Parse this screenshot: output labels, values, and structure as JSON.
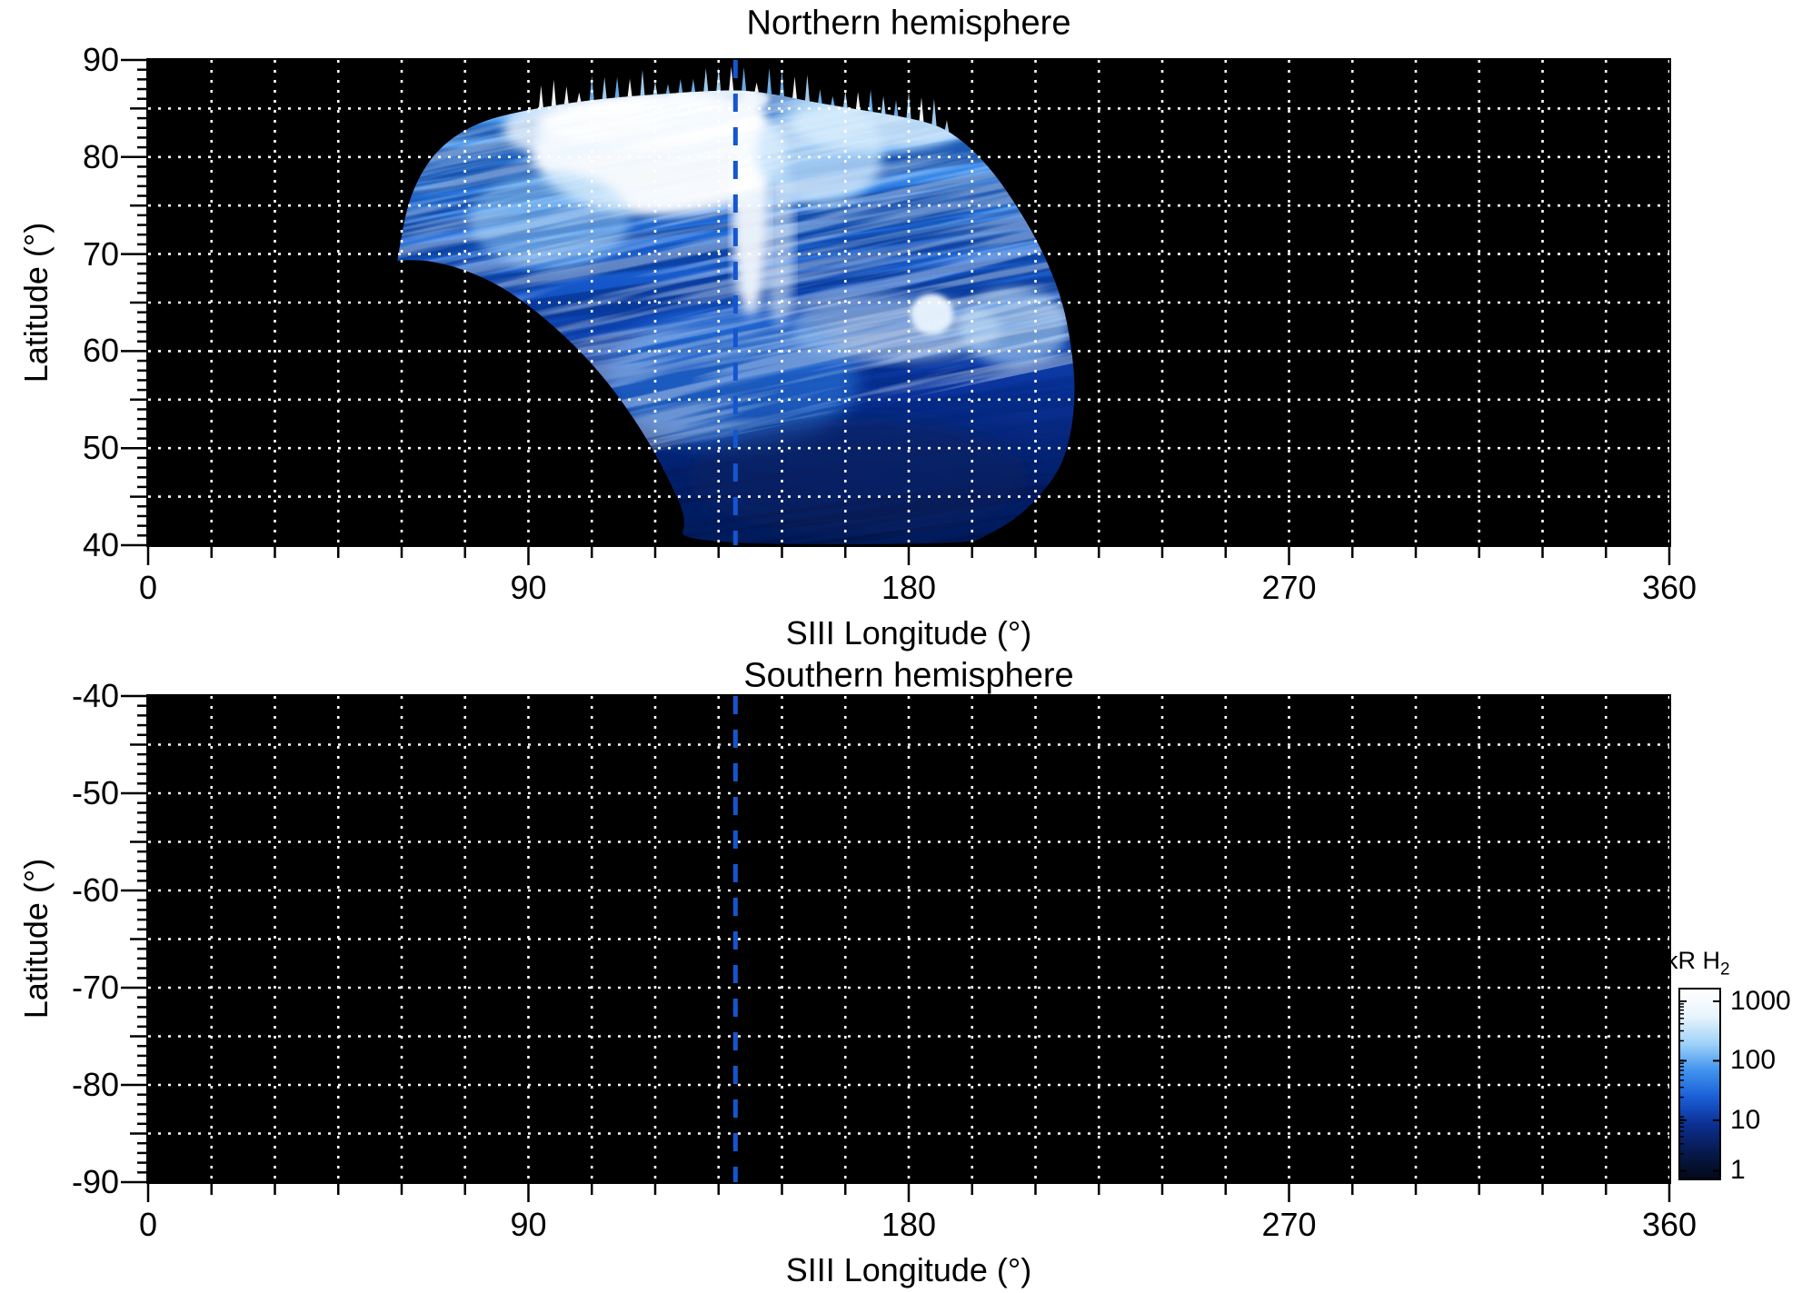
{
  "chart_data": {
    "type": "heatmap",
    "panels": [
      {
        "id": "north",
        "title": "Northern hemisphere",
        "xlabel": "SIII Longitude (°)",
        "ylabel": "Latitude (°)",
        "xlim": [
          0,
          360
        ],
        "ylim": [
          40,
          90
        ],
        "xtick_labels": [
          "0",
          "90",
          "180",
          "270",
          "360"
        ],
        "xtick_values": [
          0,
          90,
          180,
          270,
          360
        ],
        "ytick_labels": [
          "90",
          "80",
          "70",
          "60",
          "50",
          "40"
        ],
        "ytick_values": [
          90,
          80,
          70,
          60,
          50,
          40
        ],
        "x_grid_step_deg": 15,
        "y_grid_step_deg": 5,
        "x_minor_tick_step_deg": 15,
        "y_minor_tick_step_deg": 1,
        "grid_style": "white dotted on black background",
        "reference_line": {
          "lon": 139,
          "style": "dashed",
          "color": "#1456cf"
        },
        "data_coverage": {
          "lon_range": [
            59,
            220
          ],
          "lat_range": [
            40,
            87
          ],
          "description": "Fan-shaped UV auroral emission swath. Brightest (300-1000+ kR) between lat 75-87 and lon 95-165, bright vertical streak near lon 140-146, bright spot near lon 185 / lat 64, light arc near lat 60-65 for lon 150-220; mottled faint 1-30 kR emission below lat 55 narrowing to lon 125-194 at lat 40."
        },
        "aurora": {
          "outline_lonlat": [
            [
              59,
              69.3
            ],
            [
              60.5,
              73.5
            ],
            [
              63,
              77
            ],
            [
              67,
              80
            ],
            [
              72,
              82
            ],
            [
              78,
              83.5
            ],
            [
              85,
              84.4
            ],
            [
              93,
              85.1
            ],
            [
              102,
              85.7
            ],
            [
              112,
              86.2
            ],
            [
              122,
              86.5
            ],
            [
              132,
              86.8
            ],
            [
              141,
              86.9
            ],
            [
              149,
              86.4
            ],
            [
              158,
              85.6
            ],
            [
              168,
              84.9
            ],
            [
              178,
              84.2
            ],
            [
              187,
              83.3
            ],
            [
              193,
              81.6
            ],
            [
              199,
              79
            ],
            [
              204,
              76
            ],
            [
              209,
              72.5
            ],
            [
              213,
              69
            ],
            [
              216.5,
              65
            ],
            [
              218.5,
              60.5
            ],
            [
              219.5,
              56
            ],
            [
              218.5,
              51.5
            ],
            [
              216,
              48
            ],
            [
              211,
              45
            ],
            [
              205,
              42.6
            ],
            [
              198.5,
              41
            ],
            [
              194,
              40.1
            ],
            [
              125.5,
              40.1
            ],
            [
              127.5,
              42.6
            ],
            [
              124,
              46.1
            ],
            [
              119.5,
              49.9
            ],
            [
              114,
              53.7
            ],
            [
              107.5,
              57.5
            ],
            [
              100,
              61
            ],
            [
              92,
              64.1
            ],
            [
              83.5,
              66.7
            ],
            [
              75,
              68.4
            ],
            [
              67,
              69.3
            ],
            [
              61.5,
              69.4
            ]
          ],
          "bright_features": [
            {
              "lon": 121,
              "lat": 80.5,
              "rlon": 30,
              "rlat": 6.5,
              "color": "#ffffff",
              "opacity": 0.97,
              "blur": 8
            },
            {
              "lon": 100,
              "lat": 83,
              "rlon": 16,
              "rlat": 3.2,
              "color": "#f0f8fe",
              "opacity": 0.8,
              "blur": 8
            },
            {
              "lon": 118,
              "lat": 83.5,
              "rlon": 26,
              "rlat": 2.5,
              "color": "#ffffff",
              "opacity": 0.85,
              "blur": 5
            },
            {
              "lon": 135,
              "lat": 86,
              "rlon": 12,
              "rlat": 1.5,
              "color": "#ffffff",
              "opacity": 0.8,
              "blur": 4
            },
            {
              "lon": 142.5,
              "lat": 75.5,
              "rlon": 4.5,
              "rlat": 12,
              "color": "#ffffff",
              "opacity": 0.9,
              "blur": 6
            },
            {
              "lon": 149.5,
              "lat": 71,
              "rlon": 3.5,
              "rlat": 9,
              "color": "#ecf6fe",
              "opacity": 0.55,
              "blur": 6
            },
            {
              "lon": 159,
              "lat": 80.5,
              "rlon": 15,
              "rlat": 5.5,
              "color": "#bcdefa",
              "opacity": 0.8,
              "blur": 8
            },
            {
              "lon": 173,
              "lat": 83.6,
              "rlon": 21,
              "rlat": 3,
              "color": "#cde8fc",
              "opacity": 0.85,
              "blur": 6
            },
            {
              "lon": 185.5,
              "lat": 63.8,
              "rlon": 5,
              "rlat": 2.1,
              "color": "#ffffff",
              "opacity": 0.95,
              "blur": 3
            },
            {
              "lon": 177,
              "lat": 62.3,
              "rlon": 25,
              "rlat": 3.4,
              "color": "#d2e9fc",
              "opacity": 0.5,
              "blur": 6
            },
            {
              "lon": 205,
              "lat": 62.5,
              "rlon": 13,
              "rlat": 4,
              "color": "#b6dcf9",
              "opacity": 0.6,
              "blur": 8
            },
            {
              "lon": 95,
              "lat": 73.5,
              "rlon": 19,
              "rlat": 5,
              "color": "#90c8f5",
              "opacity": 0.55,
              "blur": 8
            },
            {
              "lon": 138,
              "lat": 57,
              "rlon": 30,
              "rlat": 7,
              "color": "#2f7fe6",
              "opacity": 0.55,
              "blur": 10
            },
            {
              "lon": 168,
              "lat": 47,
              "rlon": 40,
              "rlat": 6,
              "color": "#07225f",
              "opacity": 0.55,
              "blur": 10
            }
          ]
        }
      },
      {
        "id": "south",
        "title": "Southern hemisphere",
        "xlabel": "SIII Longitude (°)",
        "ylabel": "Latitude (°)",
        "xlim": [
          0,
          360
        ],
        "ylim": [
          -90,
          -40
        ],
        "xtick_labels": [
          "0",
          "90",
          "180",
          "270",
          "360"
        ],
        "xtick_values": [
          0,
          90,
          180,
          270,
          360
        ],
        "ytick_labels": [
          "-40",
          "-50",
          "-60",
          "-70",
          "-80",
          "-90"
        ],
        "ytick_values": [
          -40,
          -50,
          -60,
          -70,
          -80,
          -90
        ],
        "x_grid_step_deg": 15,
        "y_grid_step_deg": 5,
        "x_minor_tick_step_deg": 15,
        "y_minor_tick_step_deg": 1,
        "grid_style": "white dotted on black background",
        "reference_line": {
          "lon": 139,
          "style": "dashed",
          "color": "#1456cf"
        },
        "data_coverage": null,
        "note": "no emission data shown (background only)"
      }
    ],
    "colorbar": {
      "label_main": "kR H",
      "label_sub": "2",
      "scale": "log",
      "range": [
        1,
        1000
      ],
      "tick_labels": [
        "1000",
        "100",
        "10",
        "1"
      ],
      "tick_values": [
        1000,
        100,
        10,
        1
      ],
      "tick_fractions_from_top": [
        0.0625,
        0.377,
        0.692,
        0.959
      ],
      "gradient_stops_top_to_bottom": [
        "#ffffff",
        "#e8f4fd",
        "#9fd2f8",
        "#4093ee",
        "#1a5ed6",
        "#0c2f92",
        "#071a4e",
        "#030918"
      ]
    },
    "colors": {
      "background": "#ffffff",
      "plot_background": "#000000",
      "gridline": "#ffffff",
      "reference_line": "#1456cf",
      "text": "#000000"
    }
  }
}
